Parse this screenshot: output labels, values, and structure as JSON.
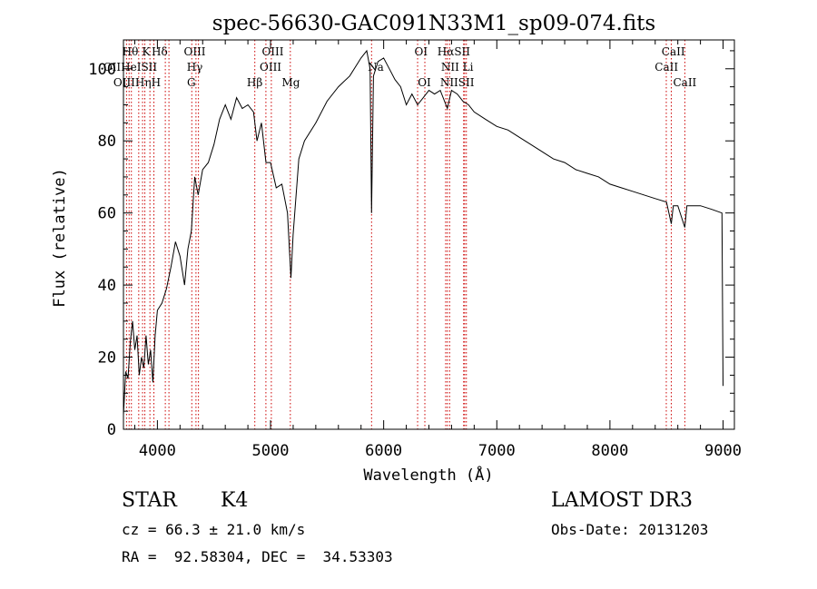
{
  "chart_data": {
    "type": "line",
    "title": "spec-56630-GAC091N33M1_sp09-074.fits",
    "xlabel": "Wavelength (Å)",
    "ylabel": "Flux (relative)",
    "xlim": [
      3700,
      9100
    ],
    "ylim": [
      0,
      108
    ],
    "xticks": [
      4000,
      5000,
      6000,
      7000,
      8000,
      9000
    ],
    "yticks": [
      0,
      20,
      40,
      60,
      80,
      100
    ],
    "grid": false,
    "series": [
      {
        "name": "flux",
        "points": [
          [
            3700,
            4
          ],
          [
            3720,
            16
          ],
          [
            3740,
            14
          ],
          [
            3760,
            24
          ],
          [
            3780,
            30
          ],
          [
            3800,
            22
          ],
          [
            3820,
            26
          ],
          [
            3840,
            15
          ],
          [
            3860,
            20
          ],
          [
            3880,
            17
          ],
          [
            3900,
            26
          ],
          [
            3920,
            18
          ],
          [
            3940,
            22
          ],
          [
            3960,
            13
          ],
          [
            3980,
            26
          ],
          [
            4000,
            33
          ],
          [
            4040,
            35
          ],
          [
            4080,
            39
          ],
          [
            4120,
            45
          ],
          [
            4160,
            52
          ],
          [
            4200,
            48
          ],
          [
            4240,
            40
          ],
          [
            4270,
            50
          ],
          [
            4300,
            55
          ],
          [
            4330,
            70
          ],
          [
            4360,
            65
          ],
          [
            4400,
            72
          ],
          [
            4450,
            74
          ],
          [
            4500,
            79
          ],
          [
            4550,
            86
          ],
          [
            4600,
            90
          ],
          [
            4650,
            86
          ],
          [
            4700,
            92
          ],
          [
            4750,
            89
          ],
          [
            4800,
            90
          ],
          [
            4850,
            88
          ],
          [
            4880,
            80
          ],
          [
            4920,
            85
          ],
          [
            4960,
            74
          ],
          [
            5000,
            74
          ],
          [
            5050,
            67
          ],
          [
            5100,
            68
          ],
          [
            5150,
            60
          ],
          [
            5180,
            42
          ],
          [
            5200,
            54
          ],
          [
            5250,
            75
          ],
          [
            5300,
            80
          ],
          [
            5400,
            85
          ],
          [
            5500,
            91
          ],
          [
            5600,
            95
          ],
          [
            5700,
            98
          ],
          [
            5800,
            103
          ],
          [
            5850,
            105
          ],
          [
            5880,
            100
          ],
          [
            5893,
            60
          ],
          [
            5910,
            98
          ],
          [
            5950,
            102
          ],
          [
            6000,
            103
          ],
          [
            6050,
            100
          ],
          [
            6100,
            97
          ],
          [
            6150,
            95
          ],
          [
            6200,
            90
          ],
          [
            6250,
            93
          ],
          [
            6300,
            90
          ],
          [
            6350,
            92
          ],
          [
            6400,
            94
          ],
          [
            6450,
            93
          ],
          [
            6500,
            94
          ],
          [
            6563,
            89
          ],
          [
            6600,
            94
          ],
          [
            6650,
            93
          ],
          [
            6700,
            91
          ],
          [
            6750,
            90
          ],
          [
            6800,
            88
          ],
          [
            6900,
            86
          ],
          [
            7000,
            84
          ],
          [
            7100,
            83
          ],
          [
            7200,
            81
          ],
          [
            7300,
            79
          ],
          [
            7400,
            77
          ],
          [
            7500,
            75
          ],
          [
            7600,
            74
          ],
          [
            7700,
            72
          ],
          [
            7800,
            71
          ],
          [
            7900,
            70
          ],
          [
            8000,
            68
          ],
          [
            8100,
            67
          ],
          [
            8200,
            66
          ],
          [
            8300,
            65
          ],
          [
            8400,
            64
          ],
          [
            8500,
            63
          ],
          [
            8542,
            57
          ],
          [
            8560,
            62
          ],
          [
            8600,
            62
          ],
          [
            8662,
            56
          ],
          [
            8680,
            62
          ],
          [
            8700,
            62
          ],
          [
            8800,
            62
          ],
          [
            8900,
            61
          ],
          [
            8990,
            60
          ],
          [
            9000,
            12
          ]
        ]
      }
    ],
    "lines": [
      {
        "wl": 3727,
        "labels": [
          "OII"
        ]
      },
      {
        "wl": 3750,
        "labels": [
          "Hθ"
        ]
      },
      {
        "wl": 3770,
        "labels": [
          "OIII"
        ]
      },
      {
        "wl": 3835,
        "labels": [
          "Hη"
        ]
      },
      {
        "wl": 3869,
        "labels": [
          "HeI"
        ]
      },
      {
        "wl": 3889,
        "labels": [
          "Hζ"
        ]
      },
      {
        "wl": 3934,
        "labels": [
          "K"
        ]
      },
      {
        "wl": 3969,
        "labels": [
          "H"
        ]
      },
      {
        "wl": 4070,
        "labels": [
          "SII"
        ]
      },
      {
        "wl": 4102,
        "labels": [
          "Hδ"
        ]
      },
      {
        "wl": 4304,
        "labels": [
          "G"
        ]
      },
      {
        "wl": 4341,
        "labels": [
          "Hγ"
        ]
      },
      {
        "wl": 4363,
        "labels": [
          "OIII"
        ]
      },
      {
        "wl": 4861,
        "labels": [
          "Hβ"
        ]
      },
      {
        "wl": 4959,
        "labels": [
          "OIII"
        ]
      },
      {
        "wl": 5007,
        "labels": [
          "OIII"
        ]
      },
      {
        "wl": 5175,
        "labels": [
          "Mg"
        ]
      },
      {
        "wl": 5893,
        "labels": [
          "Na"
        ]
      },
      {
        "wl": 6300,
        "labels": [
          "OI"
        ]
      },
      {
        "wl": 6364,
        "labels": [
          "OI"
        ]
      },
      {
        "wl": 6548,
        "labels": [
          "NII"
        ]
      },
      {
        "wl": 6563,
        "labels": [
          "Hα"
        ]
      },
      {
        "wl": 6583,
        "labels": [
          "NII"
        ]
      },
      {
        "wl": 6707,
        "labels": [
          "Li"
        ]
      },
      {
        "wl": 6716,
        "labels": [
          "SII"
        ]
      },
      {
        "wl": 6731,
        "labels": [
          "SII"
        ]
      },
      {
        "wl": 8498,
        "labels": [
          "CaII"
        ]
      },
      {
        "wl": 8542,
        "labels": [
          "CaII"
        ]
      },
      {
        "wl": 8662,
        "labels": [
          "CaII"
        ]
      }
    ]
  },
  "line_labels": {
    "row1": [
      {
        "wl": 3760,
        "text": "Hθ"
      },
      {
        "wl": 3900,
        "text": "K"
      },
      {
        "wl": 4020,
        "text": "Hδ"
      },
      {
        "wl": 4330,
        "text": "OIII"
      },
      {
        "wl": 5020,
        "text": "OIII"
      },
      {
        "wl": 6330,
        "text": "OI"
      },
      {
        "wl": 6620,
        "text": "HαSII"
      },
      {
        "wl": 8560,
        "text": "CaII"
      }
    ],
    "row2": [
      {
        "wl": 3760,
        "text": "OIIHeISII"
      },
      {
        "wl": 4330,
        "text": "Hγ"
      },
      {
        "wl": 5000,
        "text": "OIII"
      },
      {
        "wl": 5930,
        "text": "Na"
      },
      {
        "wl": 6650,
        "text": "NII Li"
      },
      {
        "wl": 8500,
        "text": "CaII"
      }
    ],
    "row3": [
      {
        "wl": 3820,
        "text": "OIIIHηH"
      },
      {
        "wl": 4300,
        "text": "G"
      },
      {
        "wl": 4860,
        "text": "Hβ"
      },
      {
        "wl": 5180,
        "text": "Mg"
      },
      {
        "wl": 6360,
        "text": "OI"
      },
      {
        "wl": 6650,
        "text": "NIISII"
      },
      {
        "wl": 8662,
        "text": "CaII"
      }
    ]
  },
  "info": {
    "object_class": "STAR",
    "subclass": "K4",
    "survey": "LAMOST DR3",
    "redshift": "cz = 66.3 ± 21.0 km/s",
    "obs_date": "Obs-Date: 20131203",
    "coords": "RA =  92.58304, DEC =  34.53303"
  },
  "colors": {
    "spectrum": "#000000",
    "line_marker": "#cc0000",
    "background": "#ffffff"
  }
}
